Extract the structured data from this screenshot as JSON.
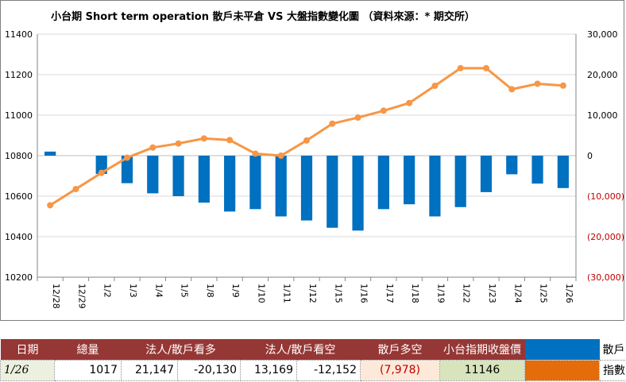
{
  "chart_data": {
    "type": "bar+line",
    "title": "小台期 Short term operation  散戶未平倉  VS  大盤指數變化圖   （資料來源：* 期交所）",
    "categories": [
      "12/28",
      "12/29",
      "1/2",
      "1/3",
      "1/4",
      "1/5",
      "1/8",
      "1/9",
      "1/10",
      "1/11",
      "1/12",
      "1/15",
      "1/16",
      "1/17",
      "1/18",
      "1/19",
      "1/22",
      "1/23",
      "1/24",
      "1/25",
      "1/26"
    ],
    "left_axis": {
      "ticks": [
        "11400",
        "11200",
        "11000",
        "10800",
        "10600",
        "10400",
        "10200"
      ],
      "ylim": [
        10200,
        11400
      ]
    },
    "right_axis": {
      "ticks": [
        "30,000",
        "20,000",
        "10,000",
        "0",
        "(10,000)",
        "(20,000)",
        "(30,000)"
      ],
      "ylim": [
        -30000,
        30000
      ]
    },
    "series": [
      {
        "name": "散戶",
        "type": "bar",
        "axis": "right",
        "color": "#0070c0",
        "values": [
          1000,
          0,
          -4500,
          -6800,
          -9300,
          -10000,
          -11600,
          -13800,
          -13200,
          -15000,
          -16000,
          -17800,
          -18500,
          -13200,
          -12000,
          -15000,
          -12700,
          -9000,
          -4600,
          -6900,
          -8000
        ]
      },
      {
        "name": "指數",
        "type": "line",
        "axis": "left",
        "color": "#f79646",
        "values": [
          10555,
          10635,
          10715,
          10790,
          10840,
          10860,
          10885,
          10877,
          10810,
          10800,
          10875,
          10958,
          10988,
          11022,
          11060,
          11145,
          11232,
          11232,
          11128,
          11155,
          11146
        ]
      }
    ],
    "grid": true,
    "legend": "table-bottom-right"
  },
  "table": {
    "headers": [
      "日期",
      "總量",
      "法人/散戶看多",
      "法人/散戶看空",
      "散戶多空",
      "小台指期收盤價"
    ],
    "row": {
      "date": "1/26",
      "total": "1017",
      "long_inst": "21,147",
      "long_retail": "-20,130",
      "short_inst": "13,169",
      "short_retail": "-12,152",
      "retail_net": "(7,978)",
      "close": "11146"
    },
    "legend": {
      "retail": "散戶",
      "index": "指數"
    }
  }
}
